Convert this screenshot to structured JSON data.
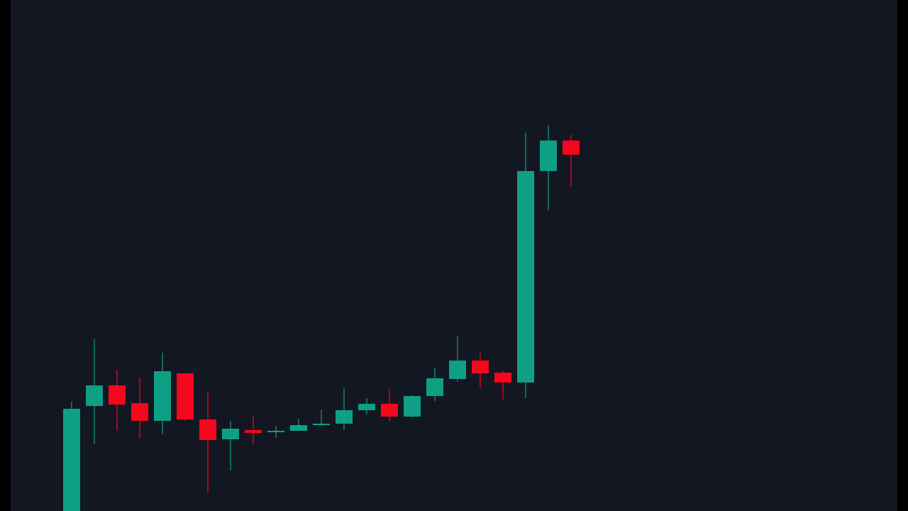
{
  "chart_data": {
    "type": "candlestick",
    "open": [
      0,
      148,
      177,
      152,
      127,
      194,
      129,
      101,
      114,
      111,
      113,
      121,
      123,
      142,
      151,
      133,
      162,
      186,
      212,
      195,
      181,
      479,
      522
    ],
    "high": [
      154,
      242,
      199,
      188,
      223,
      194,
      168,
      127,
      134,
      120,
      130,
      143,
      174,
      159,
      172,
      163,
      202,
      246,
      223,
      198,
      533,
      544,
      530
    ],
    "low": [
      0,
      95,
      113,
      102,
      108,
      127,
      26,
      57,
      94,
      103,
      113,
      120,
      114,
      136,
      126,
      132,
      155,
      182,
      174,
      157,
      159,
      424,
      457
    ],
    "close": [
      144,
      177,
      150,
      127,
      197,
      129,
      100,
      116,
      110,
      113,
      121,
      123,
      142,
      151,
      133,
      162,
      187,
      212,
      194,
      181,
      479,
      522,
      502
    ],
    "up_color": "#0e9f84",
    "down_color": "#f7071d",
    "ylim": [
      0,
      720
    ]
  }
}
